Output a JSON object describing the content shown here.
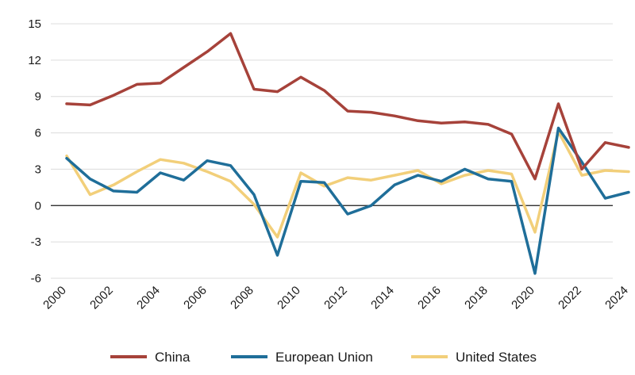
{
  "chart_data": {
    "type": "line",
    "title": "",
    "xlabel": "",
    "ylabel": "",
    "x": [
      2000,
      2001,
      2002,
      2003,
      2004,
      2005,
      2006,
      2007,
      2008,
      2009,
      2010,
      2011,
      2012,
      2013,
      2014,
      2015,
      2016,
      2017,
      2018,
      2019,
      2020,
      2021,
      2022,
      2023,
      2024
    ],
    "x_tick_labels": [
      "2000",
      "2002",
      "2004",
      "2006",
      "2008",
      "2010",
      "2012",
      "2014",
      "2016",
      "2018",
      "2020",
      "2022",
      "2024"
    ],
    "y_ticks": [
      -6,
      -3,
      0,
      3,
      6,
      9,
      12,
      15
    ],
    "ylim": [
      -6,
      15
    ],
    "xlim": [
      2000,
      2024
    ],
    "grid": "horizontal",
    "legend_position": "bottom",
    "series": [
      {
        "name": "China",
        "color": "#a6423a",
        "values": [
          8.4,
          8.3,
          9.1,
          10.0,
          10.1,
          11.4,
          12.7,
          14.2,
          9.6,
          9.4,
          10.6,
          9.5,
          7.8,
          7.7,
          7.4,
          7.0,
          6.8,
          6.9,
          6.7,
          5.9,
          2.2,
          8.4,
          3.0,
          5.2,
          4.8
        ]
      },
      {
        "name": "European Union",
        "color": "#1f6e99",
        "values": [
          3.9,
          2.2,
          1.2,
          1.1,
          2.7,
          2.1,
          3.7,
          3.3,
          0.9,
          -4.1,
          2.0,
          1.9,
          -0.7,
          0.0,
          1.7,
          2.5,
          2.0,
          3.0,
          2.2,
          2.0,
          -5.6,
          6.4,
          3.6,
          0.6,
          1.1
        ]
      },
      {
        "name": "United States",
        "color": "#f2cf7a",
        "values": [
          4.1,
          0.9,
          1.7,
          2.8,
          3.8,
          3.5,
          2.8,
          2.0,
          0.1,
          -2.6,
          2.7,
          1.6,
          2.3,
          2.1,
          2.5,
          2.9,
          1.8,
          2.5,
          2.9,
          2.6,
          -2.2,
          6.1,
          2.5,
          2.9,
          2.8
        ]
      }
    ]
  }
}
